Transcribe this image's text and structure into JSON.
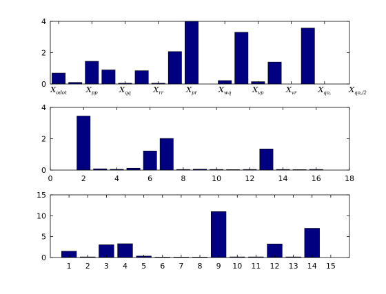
{
  "chart_data": [
    {
      "type": "bar",
      "bar_color": "#000080",
      "x": [
        1,
        2,
        3,
        4,
        5,
        6,
        7,
        8,
        9,
        10,
        11,
        12,
        13,
        14,
        15,
        16,
        17,
        18
      ],
      "values": [
        0.7,
        0.1,
        1.45,
        0.9,
        0.05,
        0.85,
        0.05,
        2.07,
        4.0,
        0.0,
        0.22,
        3.3,
        0.15,
        1.4,
        0.0,
        3.57,
        0.0,
        0.0
      ],
      "xlim": [
        0.5,
        18.5
      ],
      "ylim": [
        0,
        4
      ],
      "yticks": [
        "0",
        "2",
        "4"
      ],
      "xtick_labels": [
        {
          "x": 1,
          "base": "X",
          "sub": "odot"
        },
        {
          "x": 3,
          "base": "X",
          "sub": "pp"
        },
        {
          "x": 5,
          "base": "X",
          "sub": "qq"
        },
        {
          "x": 7,
          "base": "X",
          "sub": "rr"
        },
        {
          "x": 9,
          "base": "X",
          "sub": "pr"
        },
        {
          "x": 11,
          "base": "X",
          "sub": "wq"
        },
        {
          "x": 13,
          "base": "X",
          "sub": "vp"
        },
        {
          "x": 15,
          "base": "X",
          "sub": "vr"
        },
        {
          "x": 17,
          "base": "X",
          "sub": "qo,"
        },
        {
          "x": 19,
          "base": "X",
          "sub": "qo,/2"
        }
      ]
    },
    {
      "type": "bar",
      "bar_color": "#000080",
      "x": [
        2,
        3,
        4,
        5,
        6,
        7,
        8,
        9,
        10,
        11,
        12,
        13,
        14,
        15,
        16
      ],
      "values": [
        3.45,
        0.08,
        0.05,
        0.12,
        1.22,
        2.02,
        0.04,
        0.06,
        0.04,
        0.03,
        0.04,
        1.35,
        0.04,
        0.03,
        0.04
      ],
      "xlim": [
        0,
        18
      ],
      "ylim": [
        0,
        4
      ],
      "yticks": [
        "0",
        "2",
        "4"
      ],
      "xticks": [
        "0",
        "2",
        "4",
        "6",
        "8",
        "10",
        "12",
        "14",
        "16",
        "18"
      ]
    },
    {
      "type": "bar",
      "bar_color": "#000080",
      "x": [
        1,
        2,
        3,
        4,
        5,
        6,
        7,
        8,
        9,
        10,
        11,
        12,
        13,
        14,
        15
      ],
      "values": [
        1.5,
        0.15,
        3.05,
        3.3,
        0.35,
        0.1,
        0.1,
        0.1,
        11.0,
        0.15,
        0.15,
        3.25,
        0.15,
        7.0,
        0.0
      ],
      "xlim": [
        0,
        16
      ],
      "ylim": [
        0,
        15
      ],
      "yticks": [
        "0",
        "5",
        "10",
        "15"
      ],
      "xticks": [
        "1",
        "2",
        "3",
        "4",
        "5",
        "6",
        "7",
        "8",
        "9",
        "10",
        "11",
        "12",
        "13",
        "14",
        "15"
      ]
    }
  ]
}
